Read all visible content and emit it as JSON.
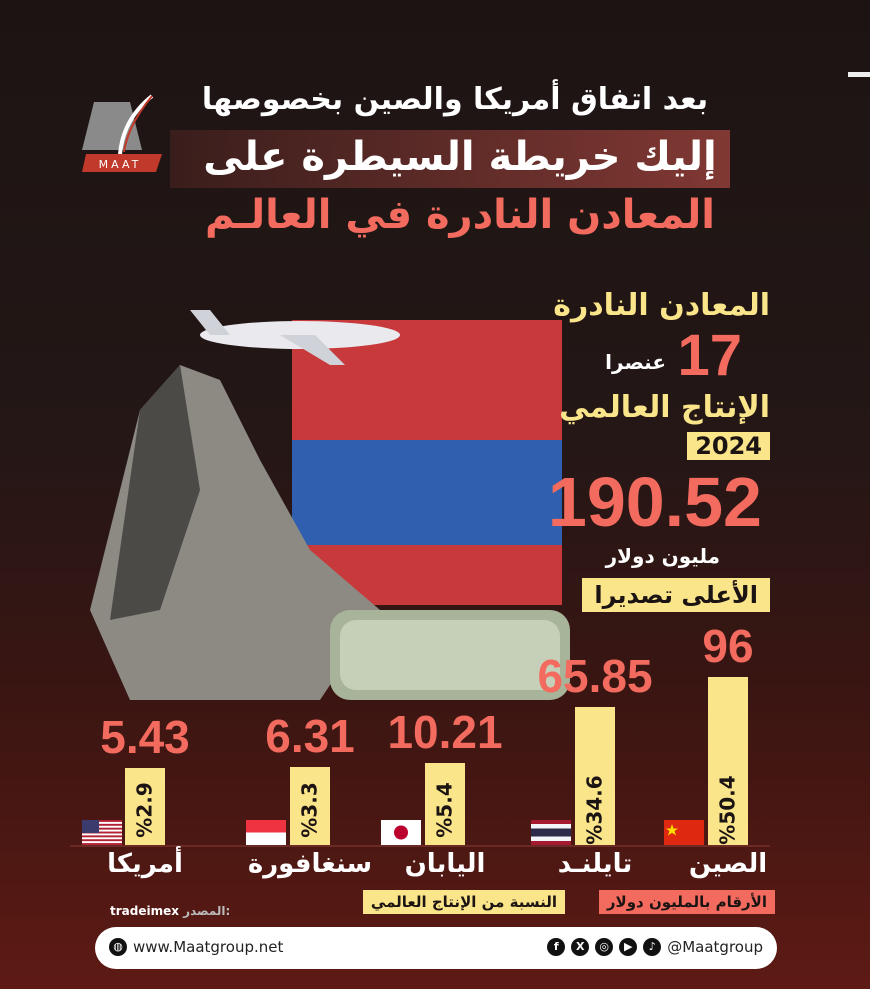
{
  "header": {
    "line1": "بعد اتفاق أمريكا والصين بخصوصها",
    "line2": "إليك خريطة السيطرة على",
    "line3": "المعادن النادرة في العالـم",
    "logo_text": "MAAT"
  },
  "stats": {
    "rare_minerals_label": "المعادن النادرة",
    "elements_count": "17",
    "elements_unit": "عنصرا",
    "production_label": "الإنتاج العالمي",
    "year": "2024",
    "production_value": "190.52",
    "production_unit": "مليون دولار",
    "top_exporters_label": "الأعلى تصديرا"
  },
  "chart_data": {
    "type": "bar",
    "categories": [
      "أمريكا",
      "سنغافورة",
      "اليابان",
      "تايلنـد",
      "الصين"
    ],
    "values": [
      5.43,
      6.31,
      10.21,
      65.85,
      96
    ],
    "value_labels": [
      "5.43",
      "6.31",
      "10.21",
      "65.85",
      "96"
    ],
    "share_labels": [
      "%2.9",
      "%3.3",
      "%5.4",
      "%34.6",
      "%50.4"
    ],
    "share_of_global_production_percent": [
      2.9,
      3.3,
      5.4,
      34.6,
      50.4
    ],
    "flags": [
      "us-flag",
      "singapore-flag",
      "japan-flag",
      "thailand-flag",
      "china-flag"
    ],
    "legend": {
      "values_note": "الأرقام بالمليون دولار",
      "share_note": "النسبة من الإنتاج العالمي"
    },
    "colors": {
      "bar": "#fbe58a",
      "value": "#f26b5e"
    }
  },
  "source": {
    "label": "المصدر:",
    "value": "tradeimex"
  },
  "footer": {
    "website": "www.Maatgroup.net",
    "handle": "@Maatgroup",
    "socials": [
      "facebook-icon",
      "x-icon",
      "instagram-icon",
      "youtube-icon",
      "tiktok-icon"
    ]
  }
}
